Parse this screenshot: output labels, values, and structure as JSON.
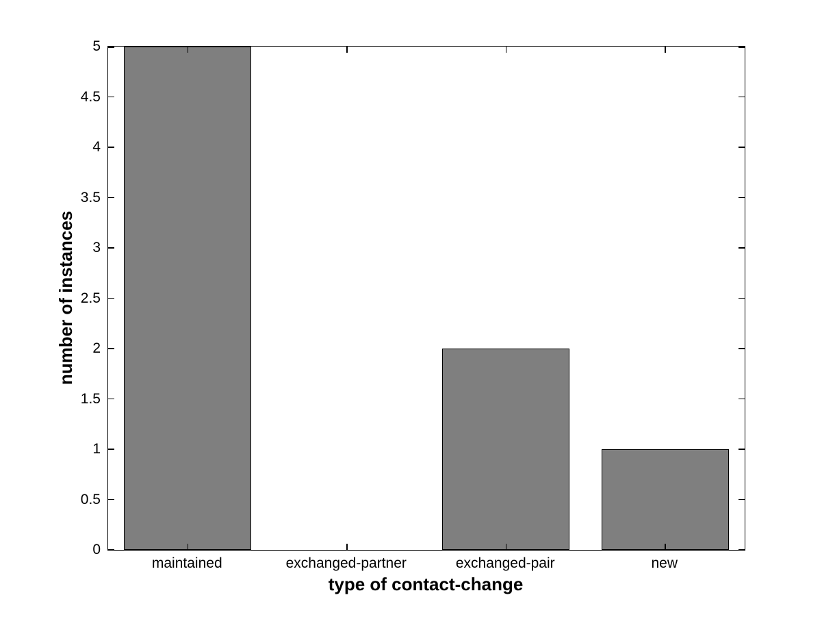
{
  "chart_data": {
    "type": "bar",
    "title": "",
    "categories": [
      "maintained",
      "exchanged-partner",
      "exchanged-pair",
      "new"
    ],
    "values": [
      5,
      0,
      2,
      1
    ],
    "xlabel": "type of contact-change",
    "ylabel": "number of instances",
    "ylim": [
      0,
      5
    ],
    "yticks": [
      0,
      0.5,
      1,
      1.5,
      2,
      2.5,
      3,
      3.5,
      4,
      4.5,
      5
    ],
    "ytick_labels": [
      "0",
      "0.5",
      "1",
      "1.5",
      "2",
      "2.5",
      "3",
      "3.5",
      "4",
      "4.5",
      "5"
    ],
    "bar_width_fraction": 0.8,
    "grid": false,
    "legend": null,
    "colors": {
      "bar_fill": "#7F7F7F",
      "bar_edge": "#000000",
      "axis": "#000000",
      "text": "#000000",
      "background": "#FFFFFF"
    }
  }
}
